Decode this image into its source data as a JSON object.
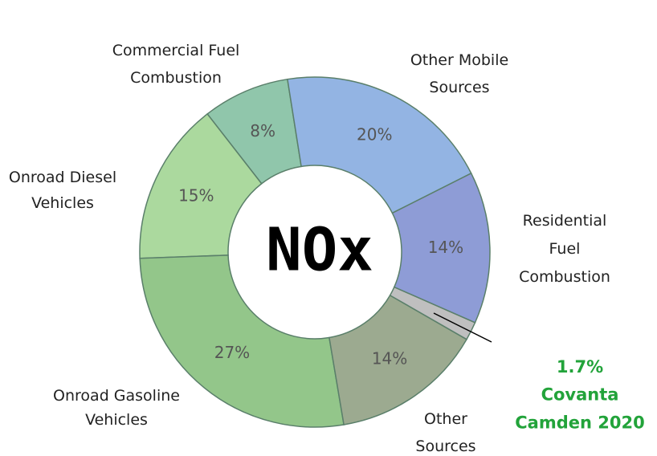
{
  "chart_data": {
    "type": "donut",
    "center_label": "NOx",
    "categories": [
      "Other Mobile\nSources",
      "Residential\nFuel\nCombustion",
      "Covanta\nCamden 2020",
      "Other\nSources",
      "Onroad Gasoline\nVehicles",
      "Onroad Diesel\nVehicles",
      "Commercial Fuel\nCombustion"
    ],
    "values": [
      20,
      14,
      1.7,
      14,
      27,
      15,
      8
    ],
    "value_labels": [
      "20%",
      "14%",
      "1.7%",
      "14%",
      "27%",
      "15%",
      "8%"
    ],
    "colors": [
      "#93b4e3",
      "#8e9cd6",
      "#bfbfbf",
      "#9caa90",
      "#93c68a",
      "#abd99e",
      "#90c6ab"
    ]
  }
}
